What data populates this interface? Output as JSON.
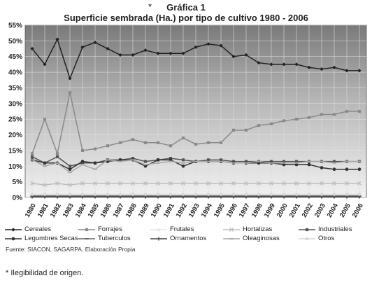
{
  "header": {
    "marker": "*",
    "figure_label": "Gráfica 1"
  },
  "source_text": "Fuente: SIACON, SAGARPA. Elaboración Propia",
  "footnote": "* Ilegibilidad de origen.",
  "chart_data": {
    "type": "line",
    "title": "Superficie sembrada (Ha.) por tipo de cultivo 1980 - 2006",
    "xlabel": "",
    "ylabel": "",
    "grid": true,
    "legend_position": "bottom",
    "ylim": [
      0,
      55
    ],
    "y_ticks": [
      0,
      5,
      10,
      15,
      20,
      25,
      30,
      35,
      40,
      45,
      50,
      55
    ],
    "y_tick_labels": [
      "0%",
      "5%",
      "10%",
      "15%",
      "20%",
      "25%",
      "30%",
      "35%",
      "40%",
      "45%",
      "50%",
      "55%"
    ],
    "categories": [
      "1980",
      "1981",
      "1982",
      "1983",
      "1984",
      "1985",
      "1986",
      "1987",
      "1988",
      "1989",
      "1990",
      "1991",
      "1992",
      "1993",
      "1994",
      "1995",
      "1996",
      "1997",
      "1998",
      "1999",
      "2000",
      "2001",
      "2002",
      "2003",
      "2004",
      "2005",
      "2006"
    ],
    "series": [
      {
        "name": "Cereales",
        "color": "#222222",
        "marker": "diamond",
        "values": [
          47.5,
          42.5,
          50.5,
          38,
          48,
          49.5,
          47.5,
          45.5,
          45.5,
          47,
          46,
          46,
          46,
          48,
          49,
          48.5,
          45,
          45.5,
          43,
          42.5,
          42.5,
          42.5,
          41.5,
          41,
          41.5,
          40.5,
          40.5
        ]
      },
      {
        "name": "Forrajes",
        "color": "#8a8a8a",
        "marker": "square",
        "values": [
          14,
          25,
          14,
          33.5,
          15,
          15.5,
          16.5,
          17.5,
          18.5,
          17.5,
          17.5,
          16.5,
          19,
          17,
          17.5,
          17.5,
          21.5,
          21.5,
          23,
          23.5,
          24.5,
          25,
          25.5,
          26.5,
          26.5,
          27.5,
          27.5
        ]
      },
      {
        "name": "Frutales",
        "color": "#e6e6e6",
        "marker": "triangle",
        "values": [
          5,
          5,
          5.5,
          5,
          5.5,
          5.5,
          5.5,
          5.5,
          5.5,
          5.5,
          5.5,
          5.5,
          5.5,
          5.5,
          5.5,
          5.5,
          5.5,
          5.5,
          5.5,
          6,
          6,
          6,
          6,
          6,
          6,
          6,
          6
        ]
      },
      {
        "name": "Hortalizas",
        "color": "#bdbdbd",
        "marker": "x",
        "values": [
          4.5,
          4,
          4.5,
          4,
          4.5,
          4.5,
          4.5,
          4.5,
          4.5,
          4.5,
          4.5,
          4.5,
          4.5,
          4.5,
          4.5,
          4.5,
          4.5,
          4.5,
          4.5,
          4.5,
          4.5,
          4.5,
          4.5,
          4.5,
          4.5,
          4.5,
          4.5
        ]
      },
      {
        "name": "Industriales",
        "color": "#555555",
        "marker": "square",
        "values": [
          13,
          11,
          13,
          10,
          11,
          11,
          12,
          12,
          12.5,
          11.5,
          12,
          12.5,
          12,
          11.5,
          12,
          12,
          11.5,
          11.5,
          11.5,
          11.5,
          11.5,
          11.5,
          11.5,
          11.5,
          11.5,
          11.5,
          11.5
        ]
      },
      {
        "name": "Legumbres Secas",
        "color": "#333333",
        "marker": "circle",
        "values": [
          12,
          11,
          11,
          9,
          11.5,
          11,
          11.5,
          12,
          12,
          10,
          12,
          12,
          10,
          11.5,
          11.5,
          11.5,
          11,
          11,
          11,
          11,
          10.5,
          10.5,
          10.5,
          9.5,
          9,
          9,
          9
        ]
      },
      {
        "name": "Tuberculos",
        "color": "#666666",
        "marker": "dash",
        "values": [
          0.5,
          0.5,
          0.5,
          0.5,
          0.5,
          0.5,
          0.5,
          0.5,
          0.5,
          0.5,
          0.5,
          0.5,
          0.5,
          0.5,
          0.5,
          0.5,
          0.5,
          0.5,
          0.5,
          0.5,
          0.5,
          0.5,
          0.5,
          0.5,
          0.5,
          0.5,
          0.5
        ]
      },
      {
        "name": "Ornamentos",
        "color": "#444444",
        "marker": "plus",
        "values": [
          0.2,
          0.2,
          0.2,
          0.2,
          0.2,
          0.2,
          0.2,
          0.2,
          0.2,
          0.2,
          0.2,
          0.2,
          0.2,
          0.2,
          0.2,
          0.2,
          0.2,
          0.2,
          0.2,
          0.2,
          0.2,
          0.2,
          0.2,
          0.2,
          0.2,
          0.2,
          0.2
        ]
      },
      {
        "name": "Oleaginosas",
        "color": "#a8a8a8",
        "marker": "dash",
        "values": [
          12,
          10,
          11,
          8,
          10.5,
          9,
          12,
          11.5,
          12,
          10.5,
          11,
          11.5,
          11,
          11.5,
          11.5,
          11.5,
          11,
          11,
          11.5,
          11,
          11,
          11,
          11.5,
          11.5,
          11,
          11.5,
          11.5
        ]
      },
      {
        "name": "Otros",
        "color": "#d9d9d9",
        "marker": "circle",
        "values": [
          1,
          1,
          1,
          1,
          1,
          1,
          1,
          1,
          1,
          1,
          1,
          1,
          1,
          1,
          1,
          1,
          1,
          1,
          1,
          1,
          1,
          1,
          1,
          1,
          1,
          1,
          1
        ]
      }
    ]
  }
}
